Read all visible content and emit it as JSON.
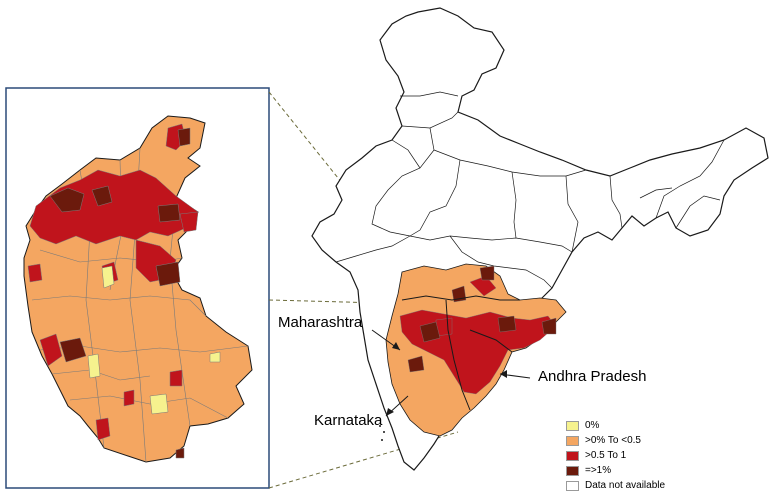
{
  "colors": {
    "zero": "#f6f28e",
    "low": "#f4a661",
    "mid": "#c0141c",
    "high": "#6b1a0c",
    "na": "#ffffff",
    "border": "#7a7a7a",
    "outline": "#1a1a1a",
    "inset_frame": "#2b4a78"
  },
  "labels": {
    "maharashtra": "Maharashtra",
    "karnataka": "Karnataka",
    "andhra_pradesh": "Andhra Pradesh"
  },
  "legend": {
    "items": [
      {
        "label": "0%",
        "color_key": "zero"
      },
      {
        "label": ">0% To <0.5",
        "color_key": "low"
      },
      {
        "label": ">0.5 To 1",
        "color_key": "mid"
      },
      {
        "label": "=>1%",
        "color_key": "high"
      },
      {
        "label": "Data not available",
        "color_key": "na"
      }
    ]
  }
}
